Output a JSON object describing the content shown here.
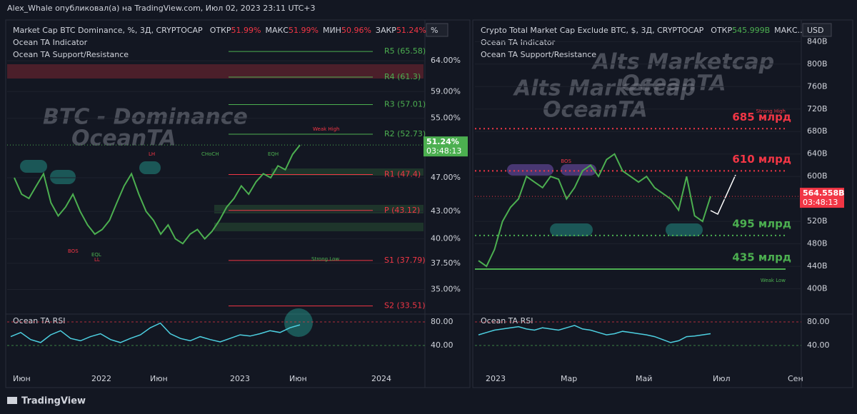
{
  "header": "Alex_Whale опубликовал(а) на TradingView.com, Июл 02, 2023 23:11 UTC+3",
  "footer": "TradingView",
  "chart_data": [
    {
      "type": "line",
      "title": "Market Cap BTC Dominance, %, 3Д, CRYPTOCAP",
      "ohlc": [
        {
          "label": "ОТКР",
          "value": "51.99%"
        },
        {
          "label": "МАКС",
          "value": "51.99%"
        },
        {
          "label": "МИН",
          "value": "50.96%"
        },
        {
          "label": "ЗАКР",
          "value": "51.24%..."
        }
      ],
      "indicators": [
        "Ocean TA Indicator",
        "Ocean TA Support/Resistance"
      ],
      "watermark": [
        "BTC - Dominance",
        "OceanTA"
      ],
      "unit": "%",
      "log_scale": true,
      "color": "#4caf50",
      "ylim": [
        32.8,
        71
      ],
      "yticks": [
        {
          "value": 64,
          "label": "64.00%"
        },
        {
          "value": 59,
          "label": "59.00%"
        },
        {
          "value": 55,
          "label": "55.00%"
        },
        {
          "value": 47,
          "label": "47.00%"
        },
        {
          "value": 43,
          "label": "43.00%"
        },
        {
          "value": 40,
          "label": "40.00%"
        },
        {
          "value": 37.5,
          "label": "37.50%"
        },
        {
          "value": 35,
          "label": "35.00%"
        }
      ],
      "xtick_labels": [
        "Июн",
        "2022",
        "Июн",
        "2023",
        "Июн",
        "2024"
      ],
      "levels": [
        {
          "label": "R5 (65.58)",
          "value": 65.58
        },
        {
          "label": "R4 (61.3)",
          "value": 61.3
        },
        {
          "label": "R3 (57.01)",
          "value": 57.01
        },
        {
          "label": "R2 (52.73)",
          "value": 52.73
        },
        {
          "label": "R1 (47.4)",
          "value": 47.4
        },
        {
          "label": "P (43.12)",
          "value": 43.12
        },
        {
          "label": "S1 (37.79)",
          "value": 37.79
        },
        {
          "label": "S2 (33.51)",
          "value": 33.51
        }
      ],
      "annotations": [
        "Weak High",
        "Strong Low",
        "LH",
        "CHoCH",
        "BOS",
        "EQL",
        "LL",
        "EQH"
      ],
      "last_price": {
        "value": 51.24,
        "label": "51.24%",
        "timer": "03:48:13"
      },
      "values": [
        47,
        45,
        44.5,
        46,
        47.5,
        44,
        42.5,
        43.5,
        45,
        43,
        41.5,
        40.5,
        41,
        42,
        44,
        46,
        47.5,
        45,
        43,
        42,
        40.5,
        41.5,
        40,
        39.5,
        40.5,
        41,
        40,
        40.8,
        42,
        43.5,
        44.5,
        46,
        45,
        46.5,
        47.5,
        47,
        48.5,
        48,
        50,
        51.24
      ],
      "rsi": {
        "title": "Ocean TA RSI",
        "ylim": [
          2.4,
          93.3
        ],
        "yticks": [
          {
            "value": 80,
            "label": "80.00"
          },
          {
            "value": 40,
            "label": "40.00"
          }
        ],
        "values": [
          55,
          62,
          50,
          45,
          58,
          65,
          52,
          48,
          55,
          60,
          50,
          45,
          52,
          58,
          70,
          78,
          60,
          52,
          48,
          55,
          50,
          46,
          52,
          58,
          56,
          60,
          65,
          62,
          70,
          75
        ]
      }
    },
    {
      "type": "line",
      "title": "Crypto Total Market Cap Exclude BTC, $, 3Д, CRYPTOCAP",
      "ohlc": [
        {
          "label": "ОТКР",
          "value": "545.999B"
        },
        {
          "label": "МАКС...",
          "value": ""
        }
      ],
      "indicators": [
        "Ocean TA Indicator",
        "Ocean TA Support/Resistance"
      ],
      "watermark": [
        "Alts Marketcap",
        "OceanTA"
      ],
      "unit": "USD",
      "log_scale": false,
      "color": "#4caf50",
      "ylim": [
        355,
        876
      ],
      "yticks": [
        {
          "value": 840,
          "label": "840B"
        },
        {
          "value": 800,
          "label": "800B"
        },
        {
          "value": 760,
          "label": "760B"
        },
        {
          "value": 720,
          "label": "720B"
        },
        {
          "value": 680,
          "label": "680B"
        },
        {
          "value": 640,
          "label": "640B"
        },
        {
          "value": 600,
          "label": "600B"
        },
        {
          "value": 560,
          "label": "560B"
        },
        {
          "value": 520,
          "label": "520B"
        },
        {
          "value": 480,
          "label": "480B"
        },
        {
          "value": 440,
          "label": "440B"
        },
        {
          "value": 400,
          "label": "400B"
        }
      ],
      "xtick_labels": [
        "2023",
        "Мар",
        "Май",
        "Июл",
        "Сен"
      ],
      "levels": [
        {
          "label": "685 млрд",
          "value": 685,
          "color": "#f23645"
        },
        {
          "label": "610 млрд",
          "value": 610,
          "color": "#f23645"
        },
        {
          "label": "495 млрд",
          "value": 495,
          "color": "#4caf50"
        },
        {
          "label": "435 млрд",
          "value": 435,
          "color": "#4caf50"
        }
      ],
      "annotations": [
        "Strong High",
        "Weak Low",
        "BOS"
      ],
      "last_price": {
        "value": 564.558,
        "label": "564.558B",
        "timer": "03:48:13"
      },
      "values": [
        450,
        440,
        470,
        520,
        545,
        560,
        600,
        590,
        580,
        600,
        595,
        560,
        580,
        610,
        620,
        600,
        630,
        640,
        610,
        600,
        590,
        600,
        580,
        570,
        560,
        540,
        600,
        530,
        520,
        564.558
      ],
      "rsi": {
        "title": "Ocean TA RSI",
        "ylim": [
          2.4,
          93.3
        ],
        "yticks": [
          {
            "value": 80,
            "label": "80.00"
          },
          {
            "value": 40,
            "label": "40.00"
          }
        ],
        "values": [
          58,
          62,
          66,
          68,
          70,
          72,
          68,
          66,
          70,
          68,
          66,
          70,
          74,
          68,
          66,
          62,
          58,
          60,
          64,
          62,
          60,
          58,
          55,
          50,
          45,
          48,
          55,
          56,
          58,
          60
        ]
      }
    }
  ]
}
